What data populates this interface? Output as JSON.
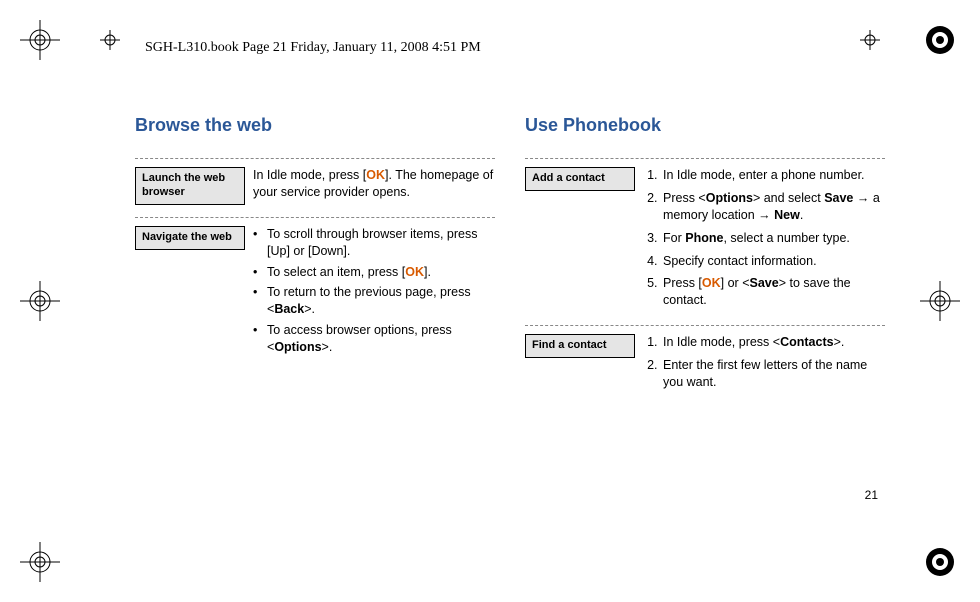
{
  "header": "SGH-L310.book  Page 21  Friday, January 11, 2008  4:51 PM",
  "page_number": "21",
  "left": {
    "heading": "Browse the web",
    "sections": [
      {
        "label": "Launch the web browser",
        "type": "para",
        "html": "In Idle mode, press [<span class='ok'>OK</span>]. The homepage of your service provider opens."
      },
      {
        "label": "Navigate the web",
        "type": "bullets",
        "items": [
          "To scroll through browser items, press [Up] or [Down].",
          "To select an item, press [<span class='ok'>OK</span>].",
          "To return to the previous page, press &lt;<span class='b'>Back</span>&gt;.",
          "To access browser options, press &lt;<span class='b'>Options</span>&gt;."
        ]
      }
    ]
  },
  "right": {
    "heading": "Use Phonebook",
    "sections": [
      {
        "label": "Add a contact",
        "type": "numbered",
        "items": [
          "In Idle mode, enter a phone number.",
          "Press &lt;<span class='b'>Options</span>&gt; and select <span class='b'>Save</span> → a memory location → <span class='b'>New</span>.",
          "For <span class='b'>Phone</span>, select a number type.",
          "Specify contact information.",
          "Press [<span class='ok'>OK</span>] or &lt;<span class='b'>Save</span>&gt; to save the contact."
        ]
      },
      {
        "label": "Find a contact",
        "type": "numbered",
        "items": [
          "In Idle mode, press &lt;<span class='b'>Contacts</span>&gt;.",
          "Enter the first few letters of the name you want."
        ]
      }
    ]
  }
}
